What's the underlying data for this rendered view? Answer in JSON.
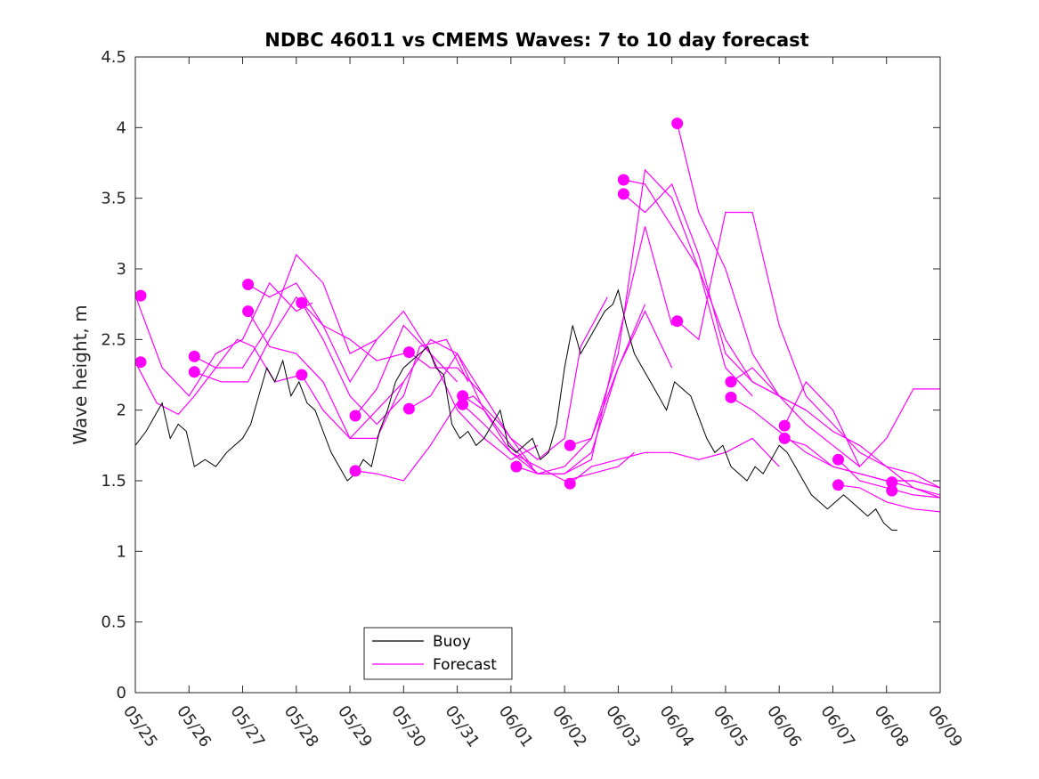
{
  "chart_data": {
    "type": "line",
    "title": "NDBC 46011 vs CMEMS Waves: 7 to 10 day forecast",
    "xlabel": "",
    "ylabel": "Wave height, m",
    "xlim": [
      "05/25",
      "06/09"
    ],
    "ylim": [
      0,
      4.5
    ],
    "xticks": [
      "05/25",
      "05/26",
      "05/27",
      "05/28",
      "05/29",
      "05/30",
      "05/31",
      "06/01",
      "06/02",
      "06/03",
      "06/04",
      "06/05",
      "06/06",
      "06/07",
      "06/08",
      "06/09"
    ],
    "yticks": [
      "0",
      "0.5",
      "1",
      "1.5",
      "2",
      "2.5",
      "3",
      "3.5",
      "4",
      "4.5"
    ],
    "grid": false,
    "legend_position": "bottom-left",
    "colors": {
      "buoy": "#000000",
      "forecast": "#ff00ff"
    },
    "series": [
      {
        "name": "Buoy",
        "x_days": [
          0.0,
          0.2,
          0.35,
          0.5,
          0.65,
          0.8,
          0.95,
          1.1,
          1.3,
          1.5,
          1.7,
          1.85,
          2.0,
          2.15,
          2.3,
          2.45,
          2.6,
          2.75,
          2.9,
          3.05,
          3.2,
          3.35,
          3.5,
          3.65,
          3.8,
          3.95,
          4.1,
          4.25,
          4.4,
          4.55,
          4.7,
          4.85,
          5.0,
          5.15,
          5.3,
          5.45,
          5.6,
          5.75,
          5.9,
          6.05,
          6.2,
          6.35,
          6.5,
          6.65,
          6.8,
          6.95,
          7.1,
          7.25,
          7.4,
          7.55,
          7.7,
          7.85,
          8.0,
          8.15,
          8.3,
          8.45,
          8.6,
          8.75,
          8.9,
          9.0,
          9.15,
          9.3,
          9.45,
          9.6,
          9.75,
          9.9,
          10.05,
          10.2,
          10.35,
          10.5,
          10.65,
          10.8,
          10.95,
          11.1,
          11.25,
          11.4,
          11.55,
          11.7,
          11.85,
          12.0,
          12.15,
          12.3,
          12.45,
          12.6,
          12.75,
          12.9,
          13.05,
          13.2,
          13.35,
          13.5,
          13.65,
          13.8,
          13.95,
          14.1,
          14.2
        ],
        "values": [
          1.75,
          1.85,
          1.95,
          2.05,
          1.8,
          1.9,
          1.85,
          1.6,
          1.65,
          1.6,
          1.7,
          1.75,
          1.8,
          1.9,
          2.1,
          2.3,
          2.2,
          2.35,
          2.1,
          2.2,
          2.05,
          2.0,
          1.85,
          1.7,
          1.6,
          1.5,
          1.55,
          1.65,
          1.6,
          1.85,
          2.0,
          2.2,
          2.3,
          2.35,
          2.4,
          2.45,
          2.3,
          2.25,
          1.9,
          1.8,
          1.85,
          1.75,
          1.8,
          1.9,
          2.0,
          1.75,
          1.7,
          1.75,
          1.8,
          1.65,
          1.7,
          1.9,
          2.3,
          2.6,
          2.4,
          2.5,
          2.6,
          2.7,
          2.75,
          2.85,
          2.6,
          2.4,
          2.3,
          2.2,
          2.1,
          2.0,
          2.2,
          2.15,
          2.1,
          1.95,
          1.8,
          1.7,
          1.75,
          1.6,
          1.55,
          1.5,
          1.6,
          1.55,
          1.65,
          1.75,
          1.7,
          1.6,
          1.5,
          1.4,
          1.35,
          1.3,
          1.35,
          1.4,
          1.35,
          1.3,
          1.25,
          1.3,
          1.2,
          1.15,
          1.15
        ]
      },
      {
        "name": "Forecast",
        "x_days": [
          0.0,
          0.3,
          0.6,
          0.9,
          1.2,
          1.5,
          1.8,
          2.1,
          2.4,
          2.7,
          3.0,
          3.3,
          3.6,
          3.9,
          4.2,
          4.5,
          4.8,
          5.1,
          5.4,
          5.7,
          6.0,
          6.3,
          6.6,
          6.9,
          7.2,
          7.5,
          7.8,
          8.1,
          8.4,
          8.7,
          9.0,
          9.3,
          9.6,
          9.9,
          10.2,
          10.5,
          10.8,
          11.1,
          11.4,
          11.7,
          12.0,
          12.3,
          12.6,
          12.9,
          13.2,
          13.5,
          13.8,
          14.1,
          14.4,
          14.7,
          15.0
        ],
        "values": [
          2.8,
          2.6,
          2.45,
          2.35,
          2.25,
          2.2,
          2.25,
          2.35,
          2.5,
          2.75,
          2.8,
          2.7,
          2.55,
          2.4,
          2.3,
          2.25,
          2.3,
          2.4,
          2.35,
          2.25,
          2.15,
          2.05,
          1.95,
          1.85,
          1.75,
          1.7,
          1.65,
          1.6,
          1.55,
          1.5,
          1.5,
          1.55,
          1.6,
          1.65,
          1.7,
          1.75,
          1.8,
          1.85,
          1.9,
          1.95,
          2.0,
          1.95,
          1.85,
          1.75,
          1.65,
          1.55,
          1.5,
          1.45,
          1.4,
          1.35,
          1.35
        ]
      }
    ],
    "forecast_runs": [
      {
        "x_days": [
          0.0,
          0.5,
          1.0,
          1.5,
          2.0,
          2.5,
          3.0,
          3.3
        ],
        "values": [
          2.81,
          2.3,
          2.1,
          2.4,
          2.5,
          2.9,
          2.7,
          2.76
        ]
      },
      {
        "x_days": [
          0.0,
          0.4,
          0.8,
          1.1,
          1.5,
          1.9,
          2.2,
          2.6,
          3.1
        ],
        "values": [
          2.34,
          2.05,
          1.97,
          2.1,
          2.3,
          2.5,
          2.45,
          2.2,
          2.25
        ]
      },
      {
        "x_days": [
          1.1,
          1.5,
          2.0,
          2.5,
          3.0,
          3.5,
          4.0,
          4.5
        ],
        "values": [
          2.38,
          2.3,
          2.3,
          2.6,
          3.1,
          2.9,
          2.4,
          2.5
        ]
      },
      {
        "x_days": [
          1.1,
          1.6,
          2.1,
          2.5,
          3.0,
          3.5,
          4.0,
          4.5,
          5.0
        ],
        "values": [
          2.27,
          2.2,
          2.2,
          2.5,
          2.8,
          2.6,
          2.5,
          2.35,
          2.4
        ]
      },
      {
        "x_days": [
          2.1,
          2.5,
          3.0,
          3.5,
          4.0,
          4.5,
          5.0,
          5.5,
          6.0
        ],
        "values": [
          2.89,
          2.8,
          2.9,
          2.6,
          2.2,
          2.5,
          2.7,
          2.4,
          2.2
        ]
      },
      {
        "x_days": [
          2.1,
          2.5,
          3.0,
          3.5,
          4.0,
          4.5,
          5.0
        ],
        "values": [
          2.7,
          2.45,
          2.4,
          2.2,
          1.8,
          1.8,
          2.2
        ]
      },
      {
        "x_days": [
          3.1,
          3.5,
          4.0,
          4.5,
          5.0,
          5.3,
          5.8,
          6.2
        ],
        "values": [
          2.76,
          2.5,
          2.1,
          1.9,
          2.1,
          2.45,
          2.5,
          2.2
        ]
      },
      {
        "x_days": [
          3.1,
          3.5,
          4.0,
          4.5,
          5.0,
          5.5,
          6.0,
          6.5
        ],
        "values": [
          2.25,
          2.0,
          1.8,
          2.0,
          2.2,
          2.5,
          2.4,
          2.1
        ]
      },
      {
        "x_days": [
          4.1,
          4.5,
          5.0,
          5.5,
          6.0,
          6.5,
          7.0,
          7.5
        ],
        "values": [
          1.96,
          2.15,
          2.6,
          2.4,
          2.0,
          1.8,
          1.65,
          1.75
        ]
      },
      {
        "x_days": [
          4.1,
          4.5,
          5.0,
          5.5,
          6.0,
          6.3,
          6.8,
          7.4
        ],
        "values": [
          1.57,
          1.55,
          1.5,
          1.75,
          2.05,
          2.1,
          1.9,
          1.6
        ]
      },
      {
        "x_days": [
          5.1,
          5.5,
          6.0,
          6.5,
          7.0,
          7.5,
          8.0,
          8.3,
          8.8
        ],
        "values": [
          2.41,
          2.3,
          2.3,
          2.1,
          1.8,
          1.65,
          1.8,
          2.45,
          2.8
        ]
      },
      {
        "x_days": [
          5.1,
          5.5,
          6.0,
          6.5,
          7.0,
          7.5,
          8.0,
          8.5,
          9.0,
          9.5
        ],
        "values": [
          2.01,
          2.1,
          2.4,
          2.0,
          1.75,
          1.55,
          1.55,
          1.7,
          2.3,
          2.75
        ]
      },
      {
        "x_days": [
          6.1,
          6.5,
          7.0,
          7.5,
          8.0,
          8.5,
          9.0,
          9.5,
          10.0
        ],
        "values": [
          2.1,
          2.0,
          1.7,
          1.55,
          1.55,
          1.65,
          2.5,
          3.3,
          2.6
        ]
      },
      {
        "x_days": [
          6.1,
          6.5,
          7.0,
          7.5,
          8.0,
          8.5,
          9.0,
          9.3
        ],
        "values": [
          2.04,
          1.9,
          1.7,
          1.6,
          1.5,
          1.55,
          1.6,
          1.7
        ]
      },
      {
        "x_days": [
          7.1,
          7.5,
          8.0,
          8.5,
          9.0,
          9.5,
          10.0
        ],
        "values": [
          1.6,
          1.55,
          1.6,
          1.8,
          2.3,
          2.7,
          2.3
        ]
      },
      {
        "x_days": [
          8.1,
          8.5,
          9.0,
          9.5,
          10.0,
          10.5,
          11.0,
          11.5
        ],
        "values": [
          1.75,
          1.8,
          2.4,
          3.7,
          3.5,
          3.0,
          2.3,
          2.1
        ]
      },
      {
        "x_days": [
          8.1,
          8.5,
          9.0,
          9.5,
          10.0,
          10.5,
          11.0,
          11.5,
          12.0
        ],
        "values": [
          1.48,
          1.6,
          1.65,
          1.7,
          1.7,
          1.65,
          1.7,
          1.8,
          1.6
        ]
      },
      {
        "x_days": [
          9.1,
          9.5,
          10.0,
          10.5,
          11.0,
          11.5,
          12.0,
          12.5
        ],
        "values": [
          3.63,
          3.6,
          3.3,
          3.0,
          2.5,
          2.2,
          2.1,
          2.0
        ]
      },
      {
        "x_days": [
          9.1,
          9.5,
          10.0,
          10.5,
          11.0,
          11.5,
          12.0
        ],
        "values": [
          3.53,
          3.4,
          3.6,
          3.1,
          2.4,
          2.2,
          2.1
        ]
      },
      {
        "x_days": [
          10.1,
          10.5,
          11.0,
          11.5,
          12.0,
          12.5,
          13.0,
          13.5
        ],
        "values": [
          4.03,
          3.4,
          3.0,
          2.4,
          2.1,
          1.9,
          1.75,
          1.6
        ]
      },
      {
        "x_days": [
          10.1,
          10.5,
          11.0,
          11.5,
          12.0,
          12.5,
          13.0,
          13.5,
          14.0,
          14.5,
          15.0
        ],
        "values": [
          2.63,
          2.5,
          3.4,
          3.4,
          2.6,
          2.1,
          1.9,
          1.7,
          1.6,
          1.45,
          1.4
        ]
      },
      {
        "x_days": [
          11.1,
          11.5,
          12.0,
          12.5,
          13.0,
          13.5,
          14.0,
          14.5,
          15.0
        ],
        "values": [
          2.2,
          2.3,
          2.1,
          2.0,
          1.85,
          1.75,
          1.6,
          1.55,
          1.45
        ]
      },
      {
        "x_days": [
          11.1,
          11.5,
          12.0,
          12.5,
          13.0,
          13.5,
          14.0,
          14.5,
          15.0
        ],
        "values": [
          2.09,
          2.0,
          1.85,
          1.7,
          1.6,
          1.55,
          1.5,
          1.45,
          1.38
        ]
      },
      {
        "x_days": [
          12.1,
          12.5,
          13.0,
          13.5,
          14.0,
          14.5,
          15.0
        ],
        "values": [
          1.89,
          2.2,
          2.0,
          1.6,
          1.8,
          2.15,
          2.15
        ]
      },
      {
        "x_days": [
          12.1,
          12.5,
          13.0,
          13.5,
          14.0,
          14.5,
          15.0
        ],
        "values": [
          1.8,
          1.75,
          1.6,
          1.55,
          1.5,
          1.5,
          1.45
        ]
      },
      {
        "x_days": [
          13.1,
          13.5,
          14.0,
          14.5,
          15.0
        ],
        "values": [
          1.65,
          1.5,
          1.45,
          1.4,
          1.38
        ]
      },
      {
        "x_days": [
          13.1,
          13.5,
          14.0,
          14.5,
          15.0
        ],
        "values": [
          1.47,
          1.45,
          1.35,
          1.3,
          1.28
        ]
      },
      {
        "x_days": [
          14.1,
          14.5,
          15.0
        ],
        "values": [
          1.5,
          1.5,
          1.45
        ]
      }
    ],
    "forecast_markers": {
      "x_days": [
        0.1,
        0.1,
        1.1,
        1.1,
        2.1,
        2.1,
        3.1,
        3.1,
        4.1,
        4.1,
        5.1,
        5.1,
        6.1,
        6.1,
        7.1,
        8.1,
        8.1,
        9.1,
        9.1,
        10.1,
        10.1,
        11.1,
        11.1,
        12.1,
        12.1,
        13.1,
        13.1,
        14.1,
        14.1
      ],
      "values": [
        2.81,
        2.34,
        2.38,
        2.27,
        2.89,
        2.7,
        2.76,
        2.25,
        1.96,
        1.57,
        2.41,
        2.01,
        2.1,
        2.04,
        1.6,
        1.75,
        1.48,
        3.63,
        3.53,
        4.03,
        2.63,
        2.2,
        2.09,
        1.89,
        1.8,
        1.65,
        1.47,
        1.49,
        1.43
      ]
    }
  }
}
